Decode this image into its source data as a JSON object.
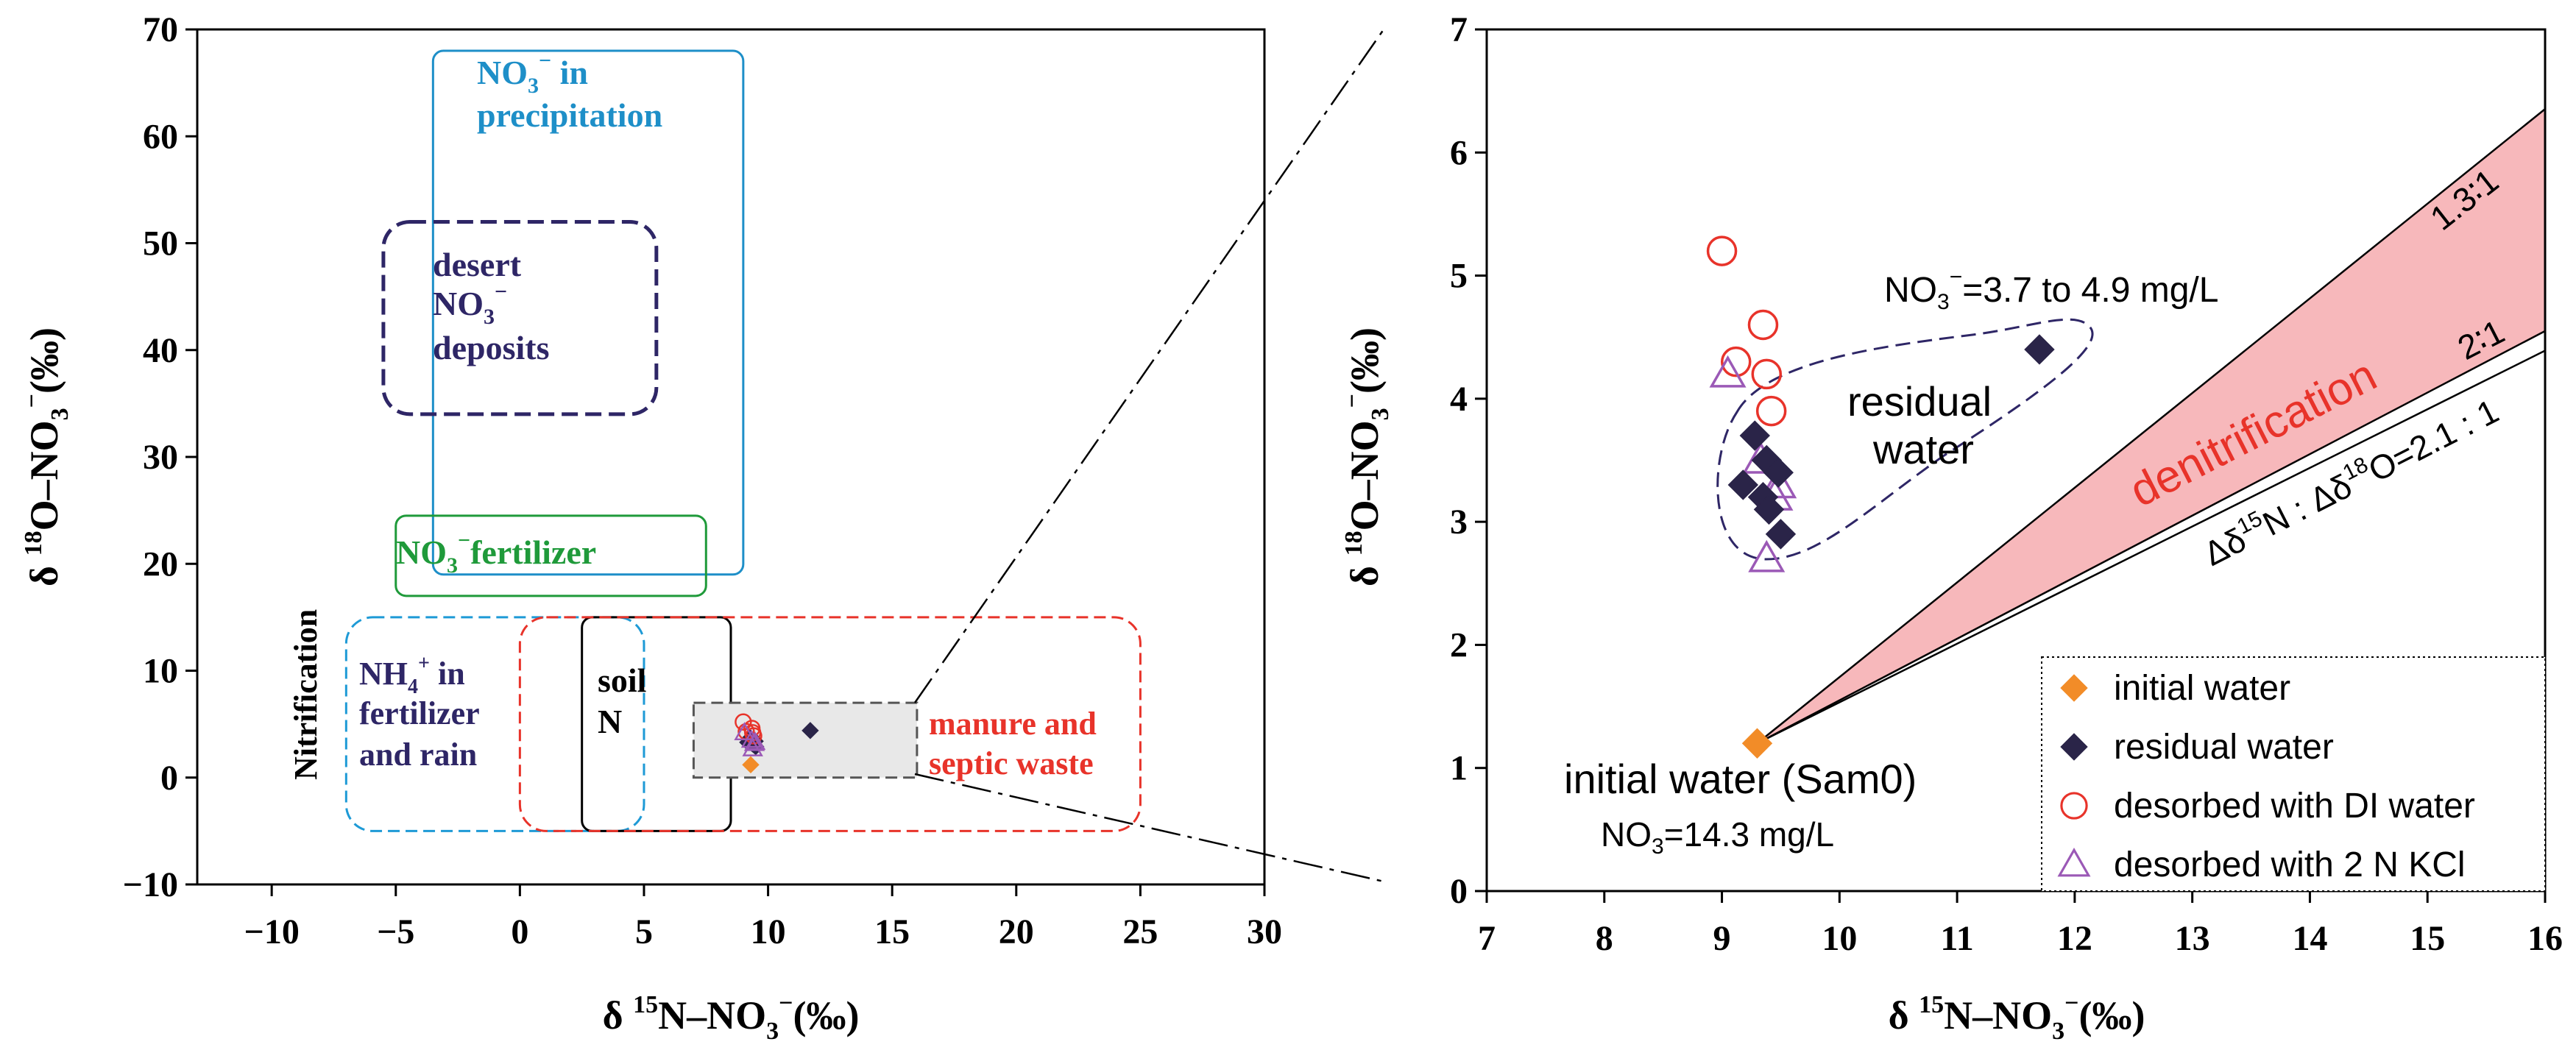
{
  "chart_data": [
    {
      "type": "scatter",
      "title": "",
      "xlabel": "δ 15N–NO3−(‰)",
      "ylabel": "δ 18O–NO3−(‰)",
      "xlim": [
        -13,
        30
      ],
      "ylim": [
        -10,
        70
      ],
      "xticks": [
        "−10",
        "−5",
        "0",
        "5",
        "10",
        "15",
        "20",
        "25",
        "30"
      ],
      "yticks": [
        "−10",
        "0",
        "10",
        "20",
        "30",
        "40",
        "50",
        "60",
        "70"
      ],
      "source_regions": [
        {
          "name": "NO3− in precipitation",
          "x": [
            -3.5,
            9
          ],
          "y": [
            19,
            68
          ],
          "color": "#1e8fc8",
          "style": "solid"
        },
        {
          "name": "desert NO3− deposits",
          "x": [
            -5.5,
            5.5
          ],
          "y": [
            34,
            52
          ],
          "color": "#2e2666",
          "style": "dashed"
        },
        {
          "name": "NO3− fertilizer",
          "x": [
            -5,
            7.5
          ],
          "y": [
            17,
            24.5
          ],
          "color": "#1f9a3a",
          "style": "solid"
        },
        {
          "name": "NH4+ in fertilizer and rain",
          "x": [
            -7,
            5
          ],
          "y": [
            -5,
            15
          ],
          "color": "#1e9ad6",
          "style": "dashed"
        },
        {
          "name": "soil N",
          "x": [
            2.5,
            8.5
          ],
          "y": [
            -5,
            15
          ],
          "color": "#000000",
          "style": "solid"
        },
        {
          "name": "manure and septic waste",
          "x": [
            0,
            25
          ],
          "y": [
            -5,
            15
          ],
          "color": "#e8332a",
          "style": "dashed"
        },
        {
          "name": "zoom region",
          "x": [
            7,
            16
          ],
          "y": [
            0,
            7
          ],
          "color": "#555555",
          "style": "dashed"
        }
      ],
      "region_labels": {
        "precip_line1": "NO",
        "precip_line1_sub": "3",
        "precip_line1_sup": "−",
        "precip_line1_tail": " in",
        "precip_line2": "precipitation",
        "desert_line1": "desert",
        "desert_line2": "NO",
        "desert_line2_sub": "3",
        "desert_line2_sup": "−",
        "desert_line3": "deposits",
        "fert_main": "NO",
        "fert_sub": "3",
        "fert_sup": "−",
        "fert_tail": "fertilizer",
        "nh4_line1": "NH",
        "nh4_line1_sub": "4",
        "nh4_line1_sup": "+",
        "nh4_line1_tail": " in",
        "nh4_line2": "fertilizer",
        "nh4_line3": "and rain",
        "soil_line1": "soil",
        "soil_line2": "N",
        "manure_line1": "manure and",
        "manure_line2": "septic waste",
        "nitrification": "Nitrification"
      }
    },
    {
      "type": "scatter",
      "title": "",
      "xlabel": "δ 15N–NO3−(‰)",
      "ylabel": "δ 18O–NO3−(‰)",
      "xlim": [
        7,
        16
      ],
      "ylim": [
        0,
        7
      ],
      "xticks": [
        "7",
        "8",
        "9",
        "10",
        "11",
        "12",
        "13",
        "14",
        "15",
        "16"
      ],
      "yticks": [
        "0",
        "1",
        "2",
        "3",
        "4",
        "5",
        "6",
        "7"
      ],
      "series": [
        {
          "name": "initial water",
          "marker": "diamond",
          "color": "#f28c28",
          "points": [
            [
              9.3,
              1.2
            ]
          ]
        },
        {
          "name": "residual water",
          "marker": "diamond",
          "color": "#2a2448",
          "points": [
            [
              11.7,
              4.4
            ],
            [
              9.28,
              3.7
            ],
            [
              9.38,
              3.5
            ],
            [
              9.48,
              3.4
            ],
            [
              9.18,
              3.3
            ],
            [
              9.35,
              3.2
            ],
            [
              9.4,
              3.1
            ],
            [
              9.5,
              2.9
            ]
          ]
        },
        {
          "name": "desorbed with DI water",
          "marker": "circle-open",
          "color": "#e8332a",
          "points": [
            [
              9.0,
              5.2
            ],
            [
              9.35,
              4.6
            ],
            [
              9.12,
              4.3
            ],
            [
              9.38,
              4.2
            ],
            [
              9.42,
              3.9
            ]
          ]
        },
        {
          "name": "desorbed with 2 N KCl",
          "marker": "triangle-open",
          "color": "#9b59b6",
          "points": [
            [
              9.05,
              4.2
            ],
            [
              9.33,
              3.5
            ],
            [
              9.48,
              3.3
            ],
            [
              9.45,
              3.2
            ],
            [
              9.38,
              2.7
            ]
          ]
        }
      ],
      "lines": [
        {
          "name": "1.3 : 1",
          "slope": 0.7692,
          "label": "1.3∶1"
        },
        {
          "name": "2 : 1",
          "slope": 0.5,
          "label": "2∶1"
        },
        {
          "name": "2.1 : 1",
          "slope": 0.4762
        }
      ],
      "origin": [
        9.3,
        1.2
      ],
      "annotations": {
        "denitrification": "denitrification",
        "ratio_prefix": "Δδ",
        "ratio_sup1": "15",
        "ratio_mid": "N : Δδ",
        "ratio_sup2": "18",
        "ratio_tail": "O=2.1 : 1",
        "residual_line1": "residual",
        "residual_line2": "water",
        "no3_range_main": "NO",
        "no3_range_sub": "3",
        "no3_range_sup": "−",
        "no3_range_tail": "=3.7 to 4.9 mg/L",
        "initial_label": "initial water (Sam0)",
        "initial_conc_main": "NO",
        "initial_conc_sub": "3",
        "initial_conc_tail": "=14.3 mg/L"
      },
      "legend": {
        "placement": "bottom-right",
        "items": [
          "initial water",
          "residual water",
          "desorbed with DI water",
          "desorbed with 2 N KCl"
        ]
      }
    }
  ],
  "axis_text": {
    "delta": "δ ",
    "x_sup": "15",
    "x_main": "N–NO",
    "x_sub": "3",
    "x_sup2": "−",
    "x_tail": "(‰)",
    "y_sup": "18",
    "y_main": "O–NO",
    "y_sub": "3",
    "y_sup2": "−",
    "y_tail": "(‰)"
  },
  "colors": {
    "denitrification_fill": "#f7b8bb",
    "denitrification_text": "#e8332a",
    "zoom_fill": "#e8e8e8",
    "residual_ellipse": "#2e2666"
  }
}
